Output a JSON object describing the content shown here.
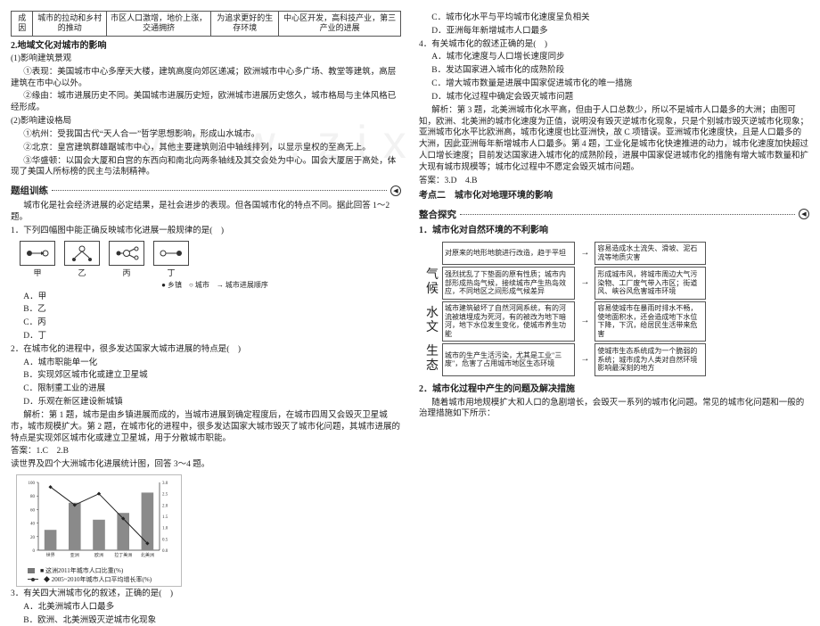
{
  "watermark": "www.zixin.com.cn",
  "left": {
    "table": {
      "r1c1": "成因",
      "r1c2": "城市的拉动和乡村的推动",
      "r1c3": "市区人口激增，地价上涨，交通拥挤",
      "r1c4": "为追求更好的生存环境",
      "r1c5": "中心区开发，高科技产业，第三产业的进展"
    },
    "sec2": "2.地域文化对城市的影响",
    "sub1": "(1)影响建筑景观",
    "p1": "①表现：美国城市中心多摩天大楼，建筑高度向郊区递减；欧洲城市中心多广场、教堂等建筑，高层建筑在市中心以外。",
    "p2": "②缘由：城市进展历史不同。美国城市进展历史短，欧洲城市进展历史悠久，城市格局与主体风格已经形成。",
    "sub2": "(2)影响建设格局",
    "p3": "①杭州：受我国古代“天人合一”哲学思想影响，形成山水城市。",
    "p4": "②北京：皇宫建筑群雄踞城市中心，其他主要建筑则沿中轴线排列，以显示皇权的至高无上。",
    "p5": "③华盛顿：以国会大厦和白宫的东西向和南北向两条轴线及其交会处为中心。国会大厦居于高处，体现了美国人所标榜的民主与法制精神。",
    "drillTitle": "题组训练",
    "intro": "城市化是社会经济进展的必定结果，是社会进步的表现。但各国城市化的特点不同。据此回答 1～2 题。",
    "q1": "1．下列四幅图中能正确反映城市化进展一般规律的是(　)",
    "mini": {
      "a": "甲",
      "b": "乙",
      "c": "丙",
      "d": "丁"
    },
    "legend": "● 乡镇　○ 城市　→ 城市进展顺序",
    "q1a": "A．甲",
    "q1b": "B．乙",
    "q1c": "C．丙",
    "q1d": "D．丁",
    "q2": "2．在城市化的进程中，很多发达国家大城市进展的特点是(　)",
    "q2a": "A．城市职能单一化",
    "q2b": "B．实现郊区城市化或建立卫星城",
    "q2c": "C．限制重工业的进展",
    "q2d": "D．乐观在新区建设新城镇",
    "expl12": "解析：第 1 题，城市是由乡镇进展而成的，当城市进展到确定程度后，在城市四周又会毁灭卫星城市，城市规模扩大。第 2 题，在城市化的进程中，很多发达国家大城市毁灭了城市化问题，其城市进展的特点是实现郊区城市化或建立卫星城，用于分散城市职能。",
    "ans12": "答案：1.C　2.B",
    "chartIntro": "读世界及四个大洲城市化进展统计图，回答 3～4 题。",
    "chart": {
      "bars": [
        30,
        70,
        45,
        55,
        85
      ],
      "line": [
        2.8,
        2.0,
        2.5,
        1.4,
        0.3
      ],
      "labels": [
        "世界",
        "亚洲",
        "欧洲",
        "拉丁\\n美洲",
        "北美洲"
      ],
      "ymaxL": 100,
      "ymaxR": 3.0,
      "barColor": "#8a8a8a",
      "lineColor": "#222222",
      "axisColor": "#333",
      "gridColor": "#ddd"
    },
    "chartLeg1": "■ 这洲2011年城市人口比重(%)",
    "chartLeg2": "◆ 2005~2010年城市人口平均增长率(%)",
    "q3": "3．有关四大洲城市化的叙述，正确的是(　)",
    "q3a": "A．北美洲城市人口最多",
    "q3b": "B．欧洲、北美洲毁灭逆城市化现象"
  },
  "right": {
    "q3c": "C．城市化水平与平均城市化速度呈负相关",
    "q3d": "D．亚洲每年新增城市人口最多",
    "q4": "4．有关城市化的叙述正确的是(　)",
    "q4a": "A．城市化速度与人口增长速度同步",
    "q4b": "B．发达国家进入城市化的成熟阶段",
    "q4c": "C．增大城市数量是进展中国家促进城市化的唯一措施",
    "q4d": "D．城市化过程中确定会毁灭城市问题",
    "expl34": "解析：第 3 题，北美洲城市化水平高，但由于人口总数少，所以不是城市人口最多的大洲；由图可知，欧洲、北美洲的城市化速度为正值，说明没有毁灭逆城市化现象，只是个别城市毁灭逆城市化现象；亚洲城市化水平比欧洲高，城市化速度也比亚洲快，故 C 项错误。亚洲城市化速度快，且是人口最多的大洲，因此亚洲每年新增城市人口最多。第 4 题，工业化是城市化快速推进的动力，城市化速度加快超过人口增长速度；目前发达国家进入城市化的成熟阶段，进展中国家促进城市化的措施有增大城市数量和扩大现有城市规模等；城市化过程中不愿定会毁灭城市问题。",
    "ans34": "答案：3.D　4.B",
    "kd": "考点二　城市化对地理环境的影响",
    "zhts": "整合探究",
    "sec1h": "1．城市化对自然环境的不利影响",
    "map": {
      "rows": [
        {
          "l": "对原来的地形地貌进行改造，趋于平坦",
          "r": "容易造成水土流失、滑坡、泥石流等地质灾害"
        },
        {
          "l": "强烈扰乱了下垫面的原有性质；城市内部形成热岛气候，接续城市产生热岛效应，不同地区之间形成气候差异",
          "r": "形成城市风，将城市周边大气污染物、工厂废气带入市区；街道风、峡谷风危害城市环境",
          "pre": "气候"
        },
        {
          "l": "城市建筑破坏了自然河网系统，有的河流被填埋成为死河，有的被改为地下暗河，地下水位发生变化，使城市养生功能",
          "r": "容易使城市在暴雨时排水不畅，使地面积水，还会造成地下水位下降，下沉，给居民生活带来危害",
          "pre": "水文"
        },
        {
          "l": "城市的生产生活污染，尤其是工业\"三废\"，危害了占用城市地区生态环境",
          "r": "使城市生态系统成为一个脆弱的系统；城市成为人类对自然环境影响最深刻的地方",
          "pre": "生态"
        }
      ]
    },
    "sec2h": "2．城市化过程中产生的问题及解决措施",
    "p_end": "随着城市用地规模扩大和人口的急剧增长，会毁灭一系列的城市化问题。常见的城市化问题和一般的治理措施如下所示："
  }
}
